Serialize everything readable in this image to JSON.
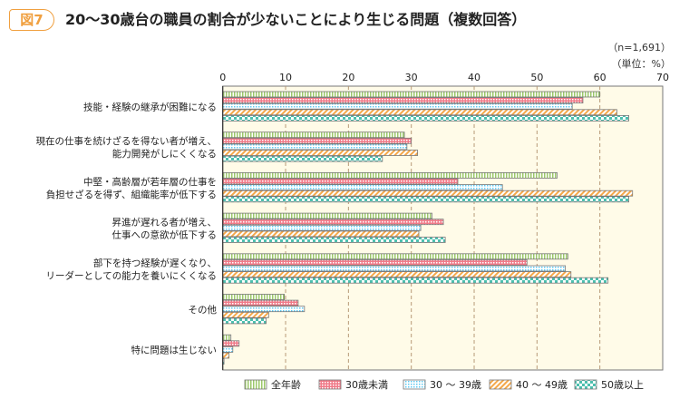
{
  "figure_label": "図7",
  "chart_data": {
    "type": "bar",
    "orientation": "horizontal",
    "title": "20〜30歳台の職員の割合が少ないことにより生じる問題（複数回答）",
    "sample_note": "（n=1,691）",
    "unit_note": "（単位：%）",
    "xlim": [
      0,
      70
    ],
    "xticks": [
      0,
      10,
      20,
      30,
      40,
      50,
      60,
      70
    ],
    "grid": true,
    "legend_position": "bottom",
    "categories": [
      [
        "技能・経験の継承が困難になる"
      ],
      [
        "現在の仕事を続けざるを得ない者が増え、",
        "能力開発がしにくくなる"
      ],
      [
        "中堅・高齢層が若年層の仕事を",
        "負担せざるを得ず、組織能率が低下する"
      ],
      [
        "昇進が遅れる者が増え、",
        "仕事への意欲が低下する"
      ],
      [
        "部下を持つ経験が遅くなり、",
        "リーダーとしての能力を養いにくくなる"
      ],
      [
        "その他"
      ],
      [
        "特に問題は生じない"
      ]
    ],
    "series": [
      {
        "name": "全年齢",
        "color": "#9cc86a",
        "pattern": "vertical-stripes",
        "values": [
          60.0,
          28.9,
          53.2,
          33.3,
          54.9,
          9.8,
          1.3
        ]
      },
      {
        "name": "30歳未満",
        "color": "#f07a88",
        "pattern": "grid",
        "values": [
          57.3,
          30.0,
          37.4,
          35.1,
          48.4,
          12.0,
          2.6
        ]
      },
      {
        "name": "30 〜 39歳",
        "color": "#5cc8f0",
        "pattern": "dots",
        "values": [
          55.6,
          29.3,
          44.5,
          31.5,
          54.5,
          13.0,
          1.6
        ]
      },
      {
        "name": "40 〜 49歳",
        "color": "#f5a84a",
        "pattern": "diagonal",
        "values": [
          62.7,
          31.0,
          65.2,
          31.2,
          55.4,
          7.3,
          1.0
        ]
      },
      {
        "name": "50歳以上",
        "color": "#4dbfae",
        "pattern": "checker",
        "values": [
          64.6,
          25.4,
          64.6,
          35.4,
          61.3,
          6.9,
          0.2
        ]
      }
    ]
  }
}
